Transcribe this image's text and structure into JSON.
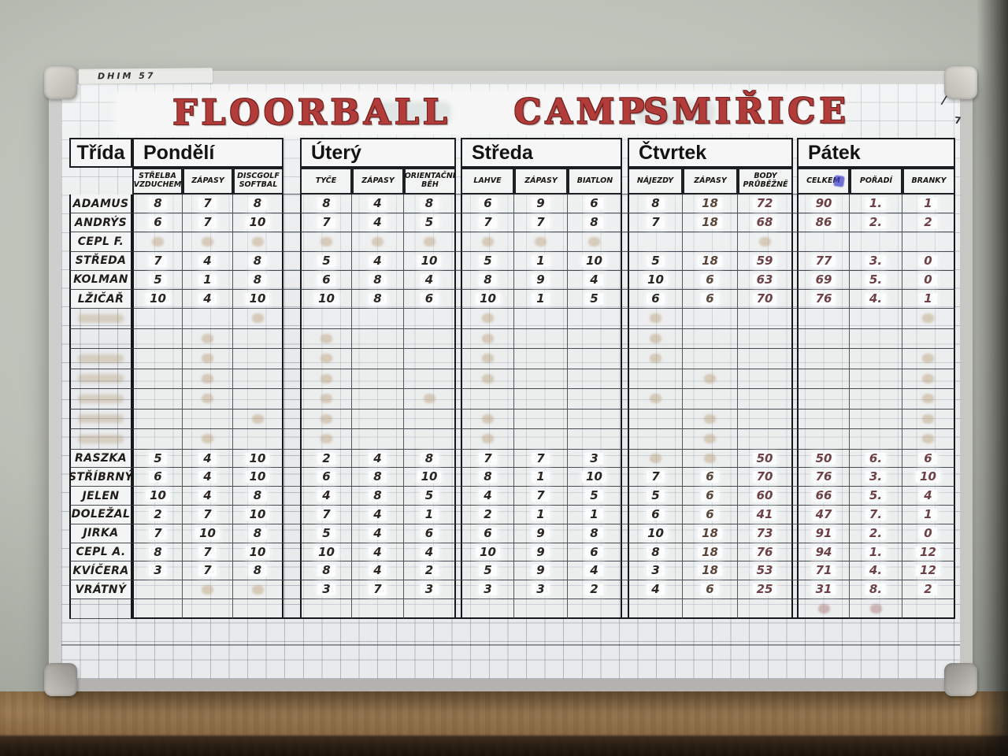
{
  "frame": {
    "label": "DHIM 57",
    "marks": [
      "/",
      "7"
    ]
  },
  "title": {
    "words": [
      "FLOORBALL",
      "CAMP",
      "SMIŘICE"
    ],
    "color": "#b23c39"
  },
  "ink_colors": {
    "k": "#2a2622",
    "t": "#5a4538",
    "m": "#6d4145"
  },
  "ink_map": [
    "k",
    "k",
    "k",
    "k",
    "k",
    "k",
    "k",
    "k",
    "k",
    "k",
    "t",
    "m",
    "m",
    "m",
    "m"
  ],
  "table": {
    "corner_header": "Třída",
    "days": [
      {
        "label": "Pondělí",
        "cols": [
          "STŘELBA VZDUCHEM",
          "ZÁPASY",
          "DISCGOLF SOFTBAL"
        ]
      },
      {
        "label": "Úterý",
        "cols": [
          "TYČE",
          "ZÁPASY",
          "ORIENTAČNÍ BĚH"
        ]
      },
      {
        "label": "Středa",
        "cols": [
          "LAHVE",
          "ZÁPASY",
          "BIATLON"
        ]
      },
      {
        "label": "Čtvrtek",
        "cols": [
          "NÁJEZDY",
          "ZÁPASY",
          "BODY PRŮBĚŽNĚ"
        ]
      },
      {
        "label": "Pátek",
        "cols": [
          "CELKEM",
          "POŘADÍ",
          "BRANKY"
        ]
      }
    ],
    "groups": [
      {
        "rows": [
          {
            "name": "ADAMUS",
            "values": [
              "8",
              "7",
              "8",
              "8",
              "4",
              "8",
              "6",
              "9",
              "6",
              "8",
              "18",
              "72",
              "90",
              "1.",
              "1"
            ]
          },
          {
            "name": "ANDRÝS",
            "values": [
              "6",
              "7",
              "10",
              "7",
              "4",
              "5",
              "7",
              "7",
              "8",
              "7",
              "18",
              "68",
              "86",
              "2.",
              "2"
            ]
          },
          {
            "name": "CEPL F.",
            "values": [
              "",
              "",
              "",
              "",
              "",
              "",
              "",
              "",
              "",
              "",
              "",
              "",
              "",
              "",
              ""
            ],
            "ghost_cols": [
              0,
              1,
              2,
              3,
              4,
              5,
              6,
              7,
              8,
              11
            ]
          },
          {
            "name": "STŘEDA",
            "values": [
              "7",
              "4",
              "8",
              "5",
              "4",
              "10",
              "5",
              "1",
              "10",
              "5",
              "18",
              "59",
              "77",
              "3.",
              "0"
            ]
          },
          {
            "name": "KOLMAN",
            "values": [
              "5",
              "1",
              "8",
              "6",
              "8",
              "4",
              "8",
              "9",
              "4",
              "10",
              "6",
              "63",
              "69",
              "5.",
              "0"
            ]
          },
          {
            "name": "LŽIČAŘ",
            "values": [
              "10",
              "4",
              "10",
              "10",
              "8",
              "6",
              "10",
              "1",
              "5",
              "6",
              "6",
              "70",
              "76",
              "4.",
              "1"
            ]
          }
        ]
      },
      {
        "rows": [
          {
            "name": "RASZKA",
            "values": [
              "5",
              "4",
              "10",
              "2",
              "4",
              "8",
              "7",
              "7",
              "3",
              "",
              "",
              "50",
              "50",
              "6.",
              "6"
            ],
            "ghost_cols": [
              9,
              10
            ]
          },
          {
            "name": "STŘÍBRNÝ",
            "values": [
              "6",
              "4",
              "10",
              "6",
              "8",
              "10",
              "8",
              "1",
              "10",
              "7",
              "6",
              "70",
              "76",
              "3.",
              "10"
            ]
          },
          {
            "name": "JELEN",
            "values": [
              "10",
              "4",
              "8",
              "4",
              "8",
              "5",
              "4",
              "7",
              "5",
              "5",
              "6",
              "60",
              "66",
              "5.",
              "4"
            ]
          },
          {
            "name": "DOLEŽAL",
            "values": [
              "2",
              "7",
              "10",
              "7",
              "4",
              "1",
              "2",
              "1",
              "1",
              "6",
              "6",
              "41",
              "47",
              "7.",
              "1"
            ]
          },
          {
            "name": "JIRKA",
            "values": [
              "7",
              "10",
              "8",
              "5",
              "4",
              "6",
              "6",
              "9",
              "8",
              "10",
              "18",
              "73",
              "91",
              "2.",
              "0"
            ]
          },
          {
            "name": "CEPL A.",
            "values": [
              "8",
              "7",
              "10",
              "10",
              "4",
              "4",
              "10",
              "9",
              "6",
              "8",
              "18",
              "76",
              "94",
              "1.",
              "12"
            ]
          },
          {
            "name": "KVÍČERA",
            "values": [
              "3",
              "7",
              "8",
              "8",
              "4",
              "2",
              "5",
              "9",
              "4",
              "3",
              "18",
              "53",
              "71",
              "4.",
              "12"
            ]
          },
          {
            "name": "VRÁTNÝ",
            "values": [
              "",
              "",
              "",
              "3",
              "7",
              "3",
              "3",
              "3",
              "2",
              "4",
              "6",
              "25",
              "31",
              "8.",
              "2"
            ],
            "ghost_cols": [
              1,
              2
            ]
          }
        ]
      }
    ]
  },
  "ghost_rows": [
    {
      "name_smudge": true,
      "cols": [
        2,
        6,
        9,
        14
      ]
    },
    {
      "name_smudge": false,
      "cols": [
        1,
        3,
        6,
        9
      ]
    },
    {
      "name_smudge": true,
      "cols": [
        1,
        3,
        6,
        9,
        14
      ]
    },
    {
      "name_smudge": true,
      "cols": [
        1,
        3,
        6,
        10,
        14
      ]
    },
    {
      "name_smudge": true,
      "cols": [
        1,
        3,
        5,
        9,
        14
      ]
    },
    {
      "name_smudge": true,
      "cols": [
        2,
        3,
        6,
        10,
        14
      ]
    },
    {
      "name_smudge": true,
      "cols": [
        1,
        3,
        6,
        10,
        14
      ]
    }
  ],
  "bottom_ghost": {
    "cols": [
      12,
      13
    ],
    "tone": "red"
  }
}
